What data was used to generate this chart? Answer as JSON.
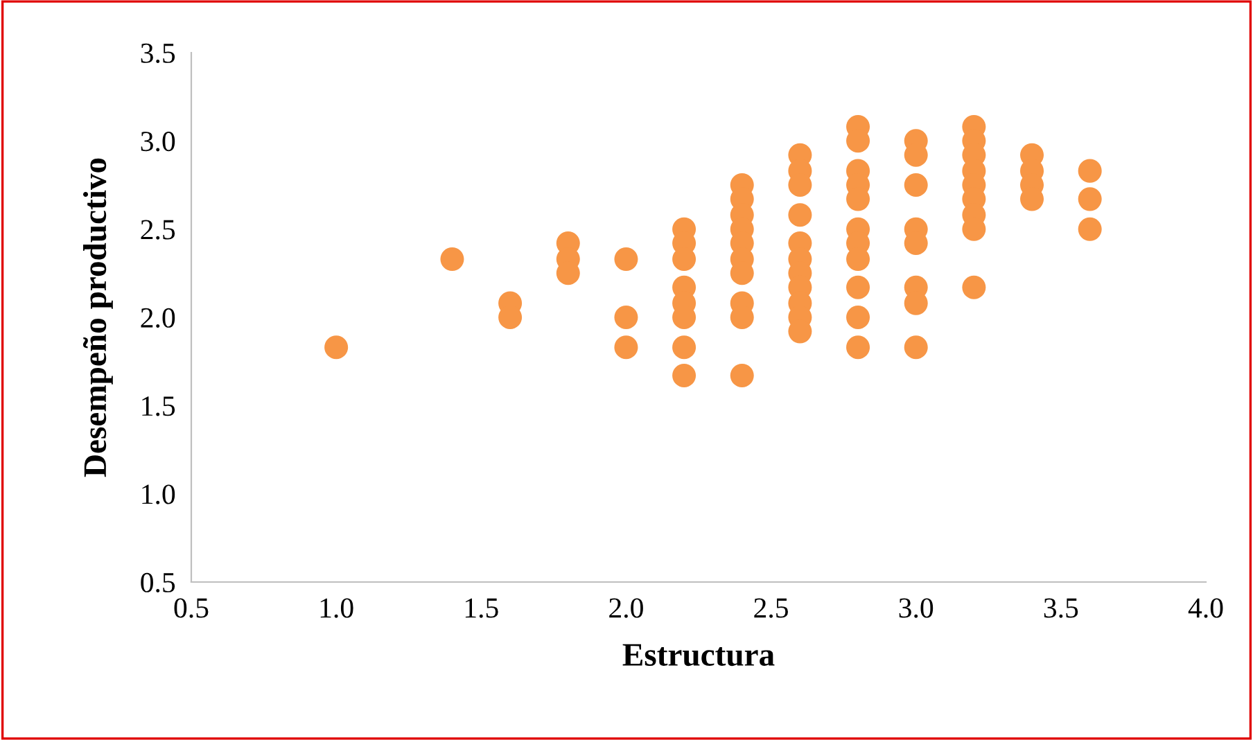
{
  "chart_data": {
    "type": "scatter",
    "xlabel": "Estructura",
    "ylabel": "Desempeño productivo",
    "xlim": [
      0.5,
      4.0
    ],
    "xticks": [
      {
        "value": 0.5,
        "label": "0.5"
      },
      {
        "value": 1.0,
        "label": "1.0"
      },
      {
        "value": 1.5,
        "label": "1.5"
      },
      {
        "value": 2.0,
        "label": "2.0"
      },
      {
        "value": 2.5,
        "label": "2.5"
      },
      {
        "value": 3.0,
        "label": "3.0"
      },
      {
        "value": 3.5,
        "label": "3.5"
      },
      {
        "value": 4.0,
        "label": "4.0"
      }
    ],
    "ylim": [
      0.5,
      3.5
    ],
    "yticks": [
      {
        "value": 0.5,
        "label": "0.5"
      },
      {
        "value": 1.0,
        "label": "1.0"
      },
      {
        "value": 1.5,
        "label": "1.5"
      },
      {
        "value": 2.0,
        "label": "2.0"
      },
      {
        "value": 2.5,
        "label": "2.5"
      },
      {
        "value": 3.0,
        "label": "3.0"
      },
      {
        "value": 3.5,
        "label": "3.5"
      }
    ],
    "grid": false,
    "marker": "circle",
    "series": [
      {
        "color": "#f79646",
        "x": [
          1.0,
          1.4,
          1.6,
          1.6,
          1.8,
          1.8,
          1.8,
          2.0,
          2.0,
          2.0,
          2.2,
          2.2,
          2.2,
          2.2,
          2.2,
          2.2,
          2.2,
          2.2,
          2.4,
          2.4,
          2.4,
          2.4,
          2.4,
          2.4,
          2.4,
          2.4,
          2.4,
          2.4,
          2.6,
          2.6,
          2.6,
          2.6,
          2.6,
          2.6,
          2.6,
          2.6,
          2.6,
          2.6,
          2.6,
          2.8,
          2.8,
          2.8,
          2.8,
          2.8,
          2.8,
          2.8,
          2.8,
          2.8,
          2.8,
          2.8,
          3.0,
          3.0,
          3.0,
          3.0,
          3.0,
          3.0,
          3.0,
          3.0,
          3.2,
          3.2,
          3.2,
          3.2,
          3.2,
          3.2,
          3.2,
          3.2,
          3.2,
          3.4,
          3.4,
          3.4,
          3.4,
          3.6,
          3.6,
          3.6
        ],
        "values": [
          1.83,
          2.33,
          2.08,
          2.0,
          2.42,
          2.33,
          2.25,
          2.33,
          2.0,
          1.83,
          2.5,
          2.42,
          2.33,
          2.17,
          2.08,
          2.0,
          1.83,
          1.67,
          2.75,
          2.67,
          2.58,
          2.5,
          2.42,
          2.33,
          2.25,
          2.08,
          2.0,
          1.67,
          2.92,
          2.83,
          2.75,
          2.58,
          2.42,
          2.33,
          2.25,
          2.17,
          2.08,
          2.0,
          1.92,
          3.08,
          3.0,
          2.83,
          2.75,
          2.67,
          2.5,
          2.42,
          2.33,
          2.17,
          2.0,
          1.83,
          3.0,
          2.92,
          2.75,
          2.5,
          2.42,
          2.17,
          2.08,
          1.83,
          3.08,
          3.0,
          2.92,
          2.83,
          2.75,
          2.67,
          2.58,
          2.5,
          2.17,
          2.92,
          2.83,
          2.75,
          2.67,
          2.83,
          2.67,
          2.5
        ]
      }
    ]
  }
}
